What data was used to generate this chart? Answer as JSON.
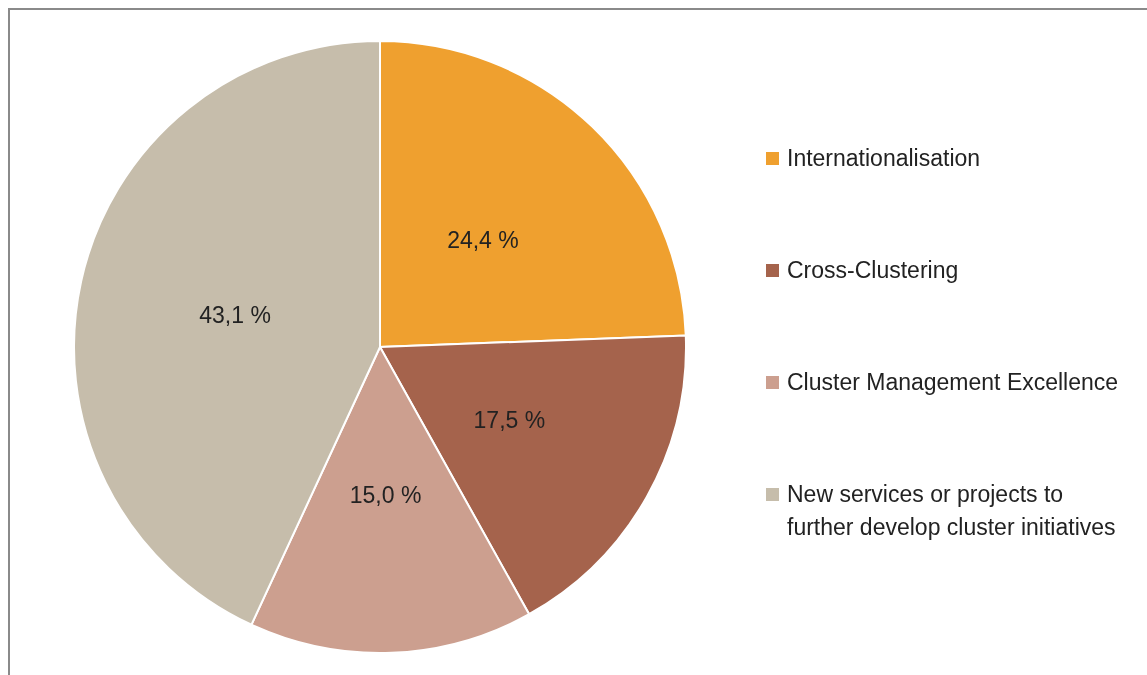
{
  "chart_data": {
    "type": "pie",
    "categories": [
      "Internationalisation",
      "Cross-Clustering",
      "Cluster Management Excellence",
      "New services or projects to further develop cluster initiatives"
    ],
    "values": [
      24.4,
      17.5,
      15.0,
      43.1
    ],
    "colors": [
      "#efa02f",
      "#a5634c",
      "#cc9f8f",
      "#c6bdab"
    ],
    "value_labels": [
      "24,4 %",
      "17,5 %",
      "15,0 %",
      "43,1 %"
    ],
    "legend": "right"
  }
}
